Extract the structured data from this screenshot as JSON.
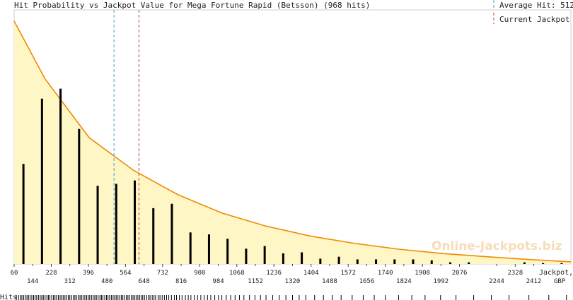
{
  "chart_data": {
    "type": "bar",
    "title": "Hit Probability vs Jackpot Value for Mega Fortune Rapid (Betsson) (968 hits)",
    "xlabel": "Jackpot, GBP",
    "xlabel_lines": [
      "Jackpot,",
      "GBP"
    ],
    "ylabel": "",
    "xlim": [
      60,
      2580
    ],
    "ylim": [
      0,
      1
    ],
    "grid": false,
    "legend_position": "top-right",
    "legend": [
      {
        "label": "Average Hit: 512",
        "color": "#3a9fc6",
        "dash": "dashed"
      },
      {
        "label": "Current Jackpot",
        "color": "#b03a3a",
        "dash": "dashed"
      }
    ],
    "average_hit": 512,
    "current_jackpot": 625,
    "ticks_top": [
      60,
      228,
      396,
      564,
      732,
      900,
      1068,
      1236,
      1404,
      1572,
      1740,
      1908,
      2076,
      2328
    ],
    "ticks_bottom": [
      144,
      312,
      480,
      648,
      816,
      984,
      1152,
      1320,
      1488,
      1656,
      1824,
      1992,
      2244,
      2412
    ],
    "bars": {
      "x": [
        102,
        186,
        270,
        354,
        438,
        522,
        606,
        690,
        774,
        858,
        942,
        1026,
        1110,
        1194,
        1278,
        1362,
        1446,
        1530,
        1614,
        1698,
        1782,
        1866,
        1950,
        2034,
        2118,
        2202,
        2286,
        2370,
        2454,
        2538
      ],
      "values": [
        0.412,
        0.681,
        0.722,
        0.556,
        0.322,
        0.33,
        0.344,
        0.23,
        0.248,
        0.13,
        0.122,
        0.104,
        0.063,
        0.074,
        0.044,
        0.048,
        0.022,
        0.03,
        0.019,
        0.019,
        0.019,
        0.019,
        0.015,
        0.007,
        0.007,
        0.0,
        0.0,
        0.007,
        0.004,
        0.004
      ]
    },
    "curve": {
      "x": [
        60,
        200,
        400,
        600,
        800,
        1000,
        1200,
        1400,
        1600,
        1800,
        2000,
        2200,
        2400,
        2580
      ],
      "values": [
        1.0,
        0.762,
        0.52,
        0.386,
        0.286,
        0.21,
        0.156,
        0.115,
        0.085,
        0.061,
        0.043,
        0.03,
        0.018,
        0.009
      ]
    },
    "hits_label": "Hits",
    "hits_rug_x": [
      70,
      80,
      88,
      95,
      103,
      110,
      118,
      125,
      132,
      140,
      148,
      155,
      162,
      170,
      178,
      185,
      192,
      200,
      208,
      215,
      222,
      230,
      238,
      245,
      252,
      260,
      268,
      275,
      282,
      290,
      298,
      305,
      312,
      320,
      328,
      335,
      342,
      350,
      358,
      365,
      372,
      380,
      388,
      395,
      402,
      410,
      418,
      425,
      432,
      440,
      448,
      455,
      462,
      470,
      478,
      485,
      492,
      500,
      508,
      515,
      522,
      530,
      538,
      545,
      552,
      560,
      568,
      575,
      582,
      590,
      598,
      605,
      612,
      620,
      628,
      635,
      642,
      650,
      660,
      668,
      675,
      685,
      693,
      700,
      712,
      720,
      730,
      740,
      750,
      760,
      772,
      785,
      795,
      808,
      820,
      835,
      848,
      860,
      875,
      890,
      905,
      920,
      935,
      950,
      968,
      985,
      1000,
      1020,
      1040,
      1060,
      1080,
      1100,
      1125,
      1150,
      1175,
      1200,
      1230,
      1260,
      1290,
      1320,
      1350,
      1380,
      1420,
      1460,
      1500,
      1540,
      1590,
      1640,
      1690,
      1740,
      1800,
      1860,
      1920,
      1990,
      2060,
      2140,
      2220,
      2300,
      2390,
      2480,
      2560
    ]
  },
  "watermark": "Online-Jackpots.biz"
}
